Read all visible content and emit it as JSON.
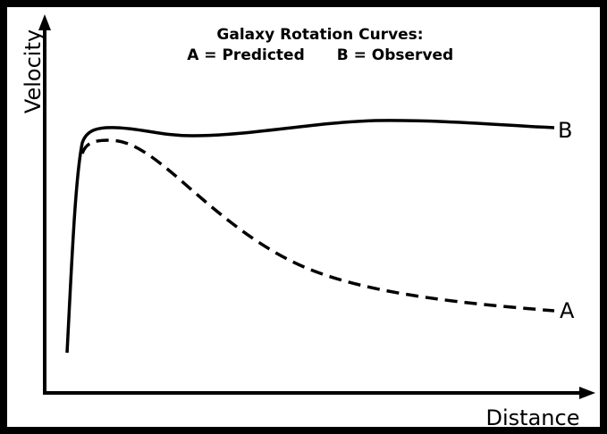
{
  "title": {
    "line1": "Galaxy Rotation Curves:",
    "line2a": "A = Predicted",
    "line2b": "B = Observed"
  },
  "axes": {
    "y_label": "Velocity",
    "x_label": "Distance"
  },
  "curves": {
    "a_label": "A",
    "b_label": "B"
  }
}
